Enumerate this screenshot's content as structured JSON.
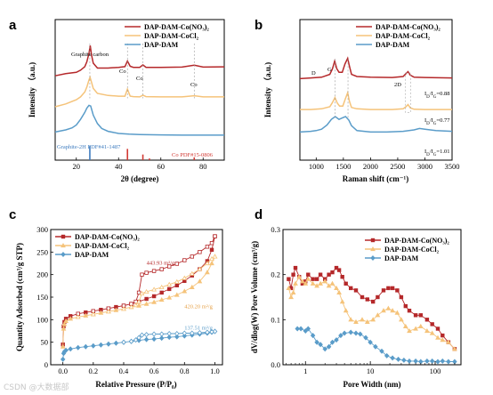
{
  "colors": {
    "co_nitrate": "#b5282a",
    "co_chloride": "#f5c37a",
    "dam": "#5a9cc9",
    "co_ref": "#d23a34",
    "graphite_ref": "#3d7bbf"
  },
  "watermark": "CSDN @大数据部",
  "chart_data": [
    {
      "panel": "a",
      "type": "line",
      "xlabel": "2θ (degree)",
      "ylabel": "Intensity  （a.u.)",
      "xlim": [
        10,
        90
      ],
      "xticks": [
        20,
        40,
        60,
        80
      ],
      "legend": {
        "position": "top-right",
        "entries": [
          "DAP-DAM-Co(NO₃)₂",
          "DAP-DAM-CoCl₂",
          "DAP-DAM"
        ]
      },
      "annotations": {
        "graphite_carbon": "Graphite carbon",
        "co": "Co",
        "graphite_pdf": "Graphite-2H PDF#41-1487",
        "co_pdf": "Co  PDF#15-0806"
      },
      "series": [
        {
          "name": "DAP-DAM-Co(NO₃)₂",
          "color": "#b5282a",
          "x": [
            10,
            15,
            20,
            22,
            24,
            25,
            26,
            26.6,
            27.2,
            28,
            30,
            35,
            40,
            43,
            44.2,
            45.5,
            47,
            50,
            51.5,
            53,
            60,
            70,
            75.8,
            80,
            90
          ],
          "y": [
            0.6,
            0.615,
            0.625,
            0.64,
            0.665,
            0.7,
            0.76,
            0.815,
            0.75,
            0.69,
            0.655,
            0.655,
            0.66,
            0.665,
            0.705,
            0.668,
            0.66,
            0.66,
            0.678,
            0.66,
            0.66,
            0.662,
            0.675,
            0.662,
            0.664
          ]
        },
        {
          "name": "DAP-DAM-CoCl₂",
          "color": "#f5c37a",
          "x": [
            10,
            15,
            20,
            22,
            24,
            25,
            26,
            26.5,
            27.2,
            28,
            30,
            35,
            40,
            43,
            44.2,
            45.5,
            47,
            50,
            51.5,
            53,
            60,
            70,
            75.8,
            80,
            90
          ],
          "y": [
            0.38,
            0.4,
            0.43,
            0.45,
            0.485,
            0.52,
            0.57,
            0.59,
            0.555,
            0.51,
            0.475,
            0.46,
            0.455,
            0.455,
            0.505,
            0.455,
            0.452,
            0.45,
            0.462,
            0.452,
            0.45,
            0.45,
            0.458,
            0.45,
            0.45
          ]
        },
        {
          "name": "DAP-DAM",
          "color": "#5a9cc9",
          "x": [
            10,
            15,
            18,
            20,
            22,
            24,
            25,
            26,
            26.8,
            28,
            30,
            32,
            35,
            40,
            45,
            50,
            60,
            70,
            80,
            90
          ],
          "y": [
            0.2,
            0.215,
            0.23,
            0.25,
            0.29,
            0.34,
            0.37,
            0.39,
            0.385,
            0.32,
            0.26,
            0.225,
            0.205,
            0.19,
            0.185,
            0.182,
            0.18,
            0.178,
            0.178,
            0.178
          ]
        }
      ],
      "reference_lines": [
        {
          "x": 26.4,
          "height": 0.1,
          "color": "#3d7bbf"
        },
        {
          "x": 44.2,
          "height": 0.08,
          "color": "#d23a34"
        },
        {
          "x": 51.5,
          "height": 0.04,
          "color": "#d23a34"
        },
        {
          "x": 54.6,
          "height": 0.012,
          "color": "#d23a34"
        },
        {
          "x": 75.8,
          "height": 0.02,
          "color": "#d23a34"
        }
      ]
    },
    {
      "panel": "b",
      "type": "line",
      "xlabel": "Raman shift (cm⁻¹)",
      "ylabel": "Intensity  （a.u.)",
      "xlim": [
        700,
        3500
      ],
      "xticks": [
        1000,
        1500,
        2000,
        2500,
        3000,
        3500
      ],
      "legend": {
        "position": "top-right",
        "entries": [
          "DAP-DAM-Co(NO₃)₂",
          "DAP-DAM-CoCl₂",
          "DAP-DAM"
        ]
      },
      "annotations": {
        "d": "D",
        "g": "G",
        "two_d": "2D"
      },
      "ratio_labels": [
        "I_D/I_G=0.88",
        "I_D/I_G=0.77",
        "I_D/I_G=1.01"
      ],
      "series": [
        {
          "name": "DAP-DAM-Co(NO₃)₂",
          "color": "#b5282a",
          "x": [
            700,
            900,
            1100,
            1250,
            1300,
            1340,
            1380,
            1420,
            1480,
            1530,
            1580,
            1610,
            1650,
            1750,
            2000,
            2400,
            2600,
            2650,
            2690,
            2730,
            2800,
            3000,
            3500
          ],
          "y": [
            0.58,
            0.585,
            0.59,
            0.61,
            0.65,
            0.705,
            0.65,
            0.625,
            0.625,
            0.685,
            0.725,
            0.67,
            0.61,
            0.595,
            0.59,
            0.588,
            0.595,
            0.615,
            0.63,
            0.605,
            0.59,
            0.588,
            0.585
          ]
        },
        {
          "name": "DAP-DAM-CoCl₂",
          "color": "#f5c37a",
          "x": [
            700,
            900,
            1100,
            1250,
            1300,
            1345,
            1390,
            1430,
            1490,
            1540,
            1580,
            1610,
            1650,
            1750,
            2000,
            2400,
            2600,
            2650,
            2690,
            2730,
            2800,
            3000,
            3500
          ],
          "y": [
            0.36,
            0.36,
            0.365,
            0.38,
            0.41,
            0.445,
            0.405,
            0.385,
            0.385,
            0.44,
            0.48,
            0.42,
            0.375,
            0.365,
            0.36,
            0.36,
            0.365,
            0.38,
            0.395,
            0.372,
            0.362,
            0.36,
            0.36
          ]
        },
        {
          "name": "DAP-DAM",
          "color": "#5a9cc9",
          "x": [
            700,
            900,
            1000,
            1100,
            1200,
            1280,
            1350,
            1420,
            1480,
            1540,
            1600,
            1650,
            1750,
            2000,
            2300,
            2600,
            2800,
            2900,
            3000,
            3200,
            3500
          ],
          "y": [
            0.2,
            0.205,
            0.21,
            0.22,
            0.25,
            0.29,
            0.31,
            0.29,
            0.3,
            0.31,
            0.285,
            0.245,
            0.21,
            0.2,
            0.2,
            0.205,
            0.215,
            0.225,
            0.22,
            0.21,
            0.205
          ]
        }
      ]
    },
    {
      "panel": "c",
      "type": "scatter",
      "xlabel": "Relative Pressure (P/P₀)",
      "ylabel": "Quantity Adsorbed (cm³/g STP)",
      "xlim": [
        -0.08,
        1.05
      ],
      "ylim": [
        0,
        300
      ],
      "xticks": [
        0.0,
        0.2,
        0.4,
        0.6,
        0.8,
        1.0
      ],
      "yticks": [
        0,
        50,
        100,
        150,
        200,
        250,
        300
      ],
      "legend": {
        "position": "top-left",
        "entries": [
          "DAP-DAM-Co(NO₃)₂",
          "DAP-DAM-CoCl₂",
          "DAP-DAM"
        ]
      },
      "annotations": [
        {
          "text": "443.93 m²/g",
          "x": 0.55,
          "y": 222,
          "color": "#b5282a"
        },
        {
          "text": "420.20 m²/g",
          "x": 0.8,
          "y": 125,
          "color": "#e6a24a"
        },
        {
          "text": "137.51 m²/g",
          "x": 0.8,
          "y": 78,
          "color": "#5a9cc9"
        }
      ],
      "series": [
        {
          "name": "DAP-DAM-Co(NO₃)₂",
          "color": "#b5282a",
          "marker": "square",
          "adsorption": {
            "x": [
              0.0,
              0.005,
              0.01,
              0.02,
              0.05,
              0.1,
              0.15,
              0.2,
              0.25,
              0.3,
              0.35,
              0.4,
              0.45,
              0.5,
              0.55,
              0.6,
              0.65,
              0.7,
              0.75,
              0.8,
              0.85,
              0.9,
              0.95,
              0.98,
              1.0
            ],
            "y": [
              45,
              85,
              95,
              102,
              108,
              113,
              116,
              119,
              122,
              125,
              128,
              131,
              135,
              140,
              146,
              152,
              160,
              168,
              176,
              186,
              198,
              212,
              230,
              255,
              285
            ]
          },
          "desorption": {
            "x": [
              1.0,
              0.98,
              0.95,
              0.9,
              0.85,
              0.8,
              0.75,
              0.7,
              0.65,
              0.6,
              0.55,
              0.52,
              0.5,
              0.48,
              0.45,
              0.4,
              0.3,
              0.2,
              0.1
            ],
            "y": [
              285,
              270,
              262,
              250,
              240,
              232,
              224,
              218,
              212,
              208,
              204,
              200,
              160,
              140,
              135,
              131,
              125,
              119,
              113
            ]
          }
        },
        {
          "name": "DAP-DAM-CoCl₂",
          "color": "#f5c37a",
          "marker": "triangle",
          "adsorption": {
            "x": [
              0.0,
              0.005,
              0.01,
              0.02,
              0.05,
              0.1,
              0.15,
              0.2,
              0.25,
              0.3,
              0.35,
              0.4,
              0.45,
              0.5,
              0.55,
              0.6,
              0.65,
              0.7,
              0.75,
              0.8,
              0.85,
              0.9,
              0.95,
              0.98,
              1.0
            ],
            "y": [
              40,
              80,
              90,
              97,
              102,
              106,
              109,
              112,
              115,
              118,
              121,
              124,
              128,
              131,
              135,
              139,
              144,
              149,
              155,
              163,
              172,
              185,
              205,
              225,
              240
            ]
          },
          "desorption": {
            "x": [
              1.0,
              0.98,
              0.95,
              0.9,
              0.85,
              0.8,
              0.75,
              0.7,
              0.65,
              0.6,
              0.55,
              0.52,
              0.5,
              0.48,
              0.45,
              0.4,
              0.3,
              0.2,
              0.1
            ],
            "y": [
              240,
              235,
              225,
              212,
              202,
              192,
              184,
              178,
              172,
              167,
              162,
              158,
              140,
              132,
              128,
              124,
              118,
              112,
              106
            ]
          }
        },
        {
          "name": "DAP-DAM",
          "color": "#5a9cc9",
          "marker": "diamond",
          "adsorption": {
            "x": [
              0.0,
              0.005,
              0.01,
              0.02,
              0.05,
              0.1,
              0.15,
              0.2,
              0.25,
              0.3,
              0.35,
              0.4,
              0.45,
              0.5,
              0.55,
              0.6,
              0.65,
              0.7,
              0.75,
              0.8,
              0.85,
              0.9,
              0.95,
              0.98,
              1.0
            ],
            "y": [
              12,
              25,
              29,
              32,
              35,
              38,
              40,
              42,
              44,
              46,
              48,
              50,
              52,
              54,
              56,
              57,
              59,
              61,
              62,
              64,
              66,
              68,
              70,
              72,
              74
            ]
          },
          "desorption": {
            "x": [
              1.0,
              0.98,
              0.95,
              0.9,
              0.85,
              0.8,
              0.75,
              0.7,
              0.65,
              0.6,
              0.55,
              0.52,
              0.5,
              0.48,
              0.45,
              0.4
            ],
            "y": [
              74,
              73,
              72,
              71,
              70,
              70,
              69,
              69,
              68,
              68,
              67,
              66,
              60,
              55,
              52,
              50
            ]
          }
        }
      ]
    },
    {
      "panel": "d",
      "type": "scatter",
      "xlabel": "Pore Width (nm)",
      "ylabel": "dV/dlog(W) Pore Volume (cm³/g)",
      "xscale": "log",
      "xlim": [
        0.45,
        250
      ],
      "ylim": [
        0,
        0.3
      ],
      "xticks": [
        1,
        10,
        100
      ],
      "yticks": [
        0.0,
        0.1,
        0.2,
        0.3
      ],
      "legend": {
        "position": "top-right",
        "entries": [
          "DAP-DAM-Co(NO₃)₂",
          "DAP-DAM-CoCl₂",
          "DAP-DAM"
        ]
      },
      "series": [
        {
          "name": "DAP-DAM-Co(NO₃)₂",
          "color": "#b5282a",
          "marker": "square",
          "x": [
            0.55,
            0.6,
            0.65,
            0.7,
            0.8,
            0.9,
            1.0,
            1.1,
            1.3,
            1.5,
            1.7,
            2.0,
            2.3,
            2.6,
            3.0,
            3.3,
            3.7,
            4.2,
            5.0,
            6.0,
            7.5,
            9.0,
            11,
            13,
            16,
            19,
            22,
            26,
            30,
            35,
            40,
            50,
            60,
            75,
            90,
            110,
            130,
            160,
            200
          ],
          "y": [
            0.19,
            0.17,
            0.2,
            0.215,
            0.195,
            0.18,
            0.185,
            0.2,
            0.19,
            0.19,
            0.2,
            0.19,
            0.2,
            0.205,
            0.215,
            0.21,
            0.195,
            0.18,
            0.17,
            0.165,
            0.15,
            0.145,
            0.14,
            0.15,
            0.165,
            0.17,
            0.17,
            0.165,
            0.15,
            0.13,
            0.12,
            0.11,
            0.11,
            0.1,
            0.09,
            0.08,
            0.065,
            0.05,
            0.035
          ]
        },
        {
          "name": "DAP-DAM-CoCl₂",
          "color": "#f5c37a",
          "marker": "triangle",
          "x": [
            0.55,
            0.6,
            0.65,
            0.7,
            0.8,
            0.9,
            1.0,
            1.1,
            1.3,
            1.5,
            1.7,
            2.0,
            2.3,
            2.6,
            3.0,
            3.3,
            3.7,
            4.2,
            5.0,
            6.0,
            7.5,
            9.0,
            11,
            13,
            16,
            19,
            22,
            26,
            30,
            35,
            40,
            50,
            60,
            75,
            90,
            110,
            130,
            160,
            200
          ],
          "y": [
            0.17,
            0.15,
            0.16,
            0.18,
            0.195,
            0.185,
            0.18,
            0.19,
            0.18,
            0.175,
            0.18,
            0.185,
            0.175,
            0.18,
            0.17,
            0.16,
            0.14,
            0.12,
            0.1,
            0.095,
            0.1,
            0.095,
            0.1,
            0.11,
            0.12,
            0.125,
            0.12,
            0.115,
            0.1,
            0.085,
            0.075,
            0.08,
            0.085,
            0.075,
            0.07,
            0.06,
            0.055,
            0.05,
            0.035
          ]
        },
        {
          "name": "DAP-DAM",
          "color": "#5a9cc9",
          "marker": "diamond",
          "x": [
            0.75,
            0.85,
            1.0,
            1.1,
            1.3,
            1.5,
            1.7,
            2.0,
            2.3,
            2.6,
            3.0,
            3.5,
            4.0,
            5.0,
            6.0,
            7.0,
            8.5,
            10,
            12,
            15,
            18,
            22,
            27,
            33,
            40,
            50,
            60,
            75,
            90,
            110,
            130,
            160,
            200
          ],
          "y": [
            0.08,
            0.08,
            0.075,
            0.08,
            0.065,
            0.05,
            0.045,
            0.035,
            0.04,
            0.05,
            0.055,
            0.065,
            0.07,
            0.072,
            0.07,
            0.068,
            0.06,
            0.05,
            0.04,
            0.03,
            0.02,
            0.015,
            0.012,
            0.01,
            0.008,
            0.008,
            0.007,
            0.008,
            0.008,
            0.007,
            0.008,
            0.007,
            0.007
          ]
        }
      ]
    }
  ]
}
